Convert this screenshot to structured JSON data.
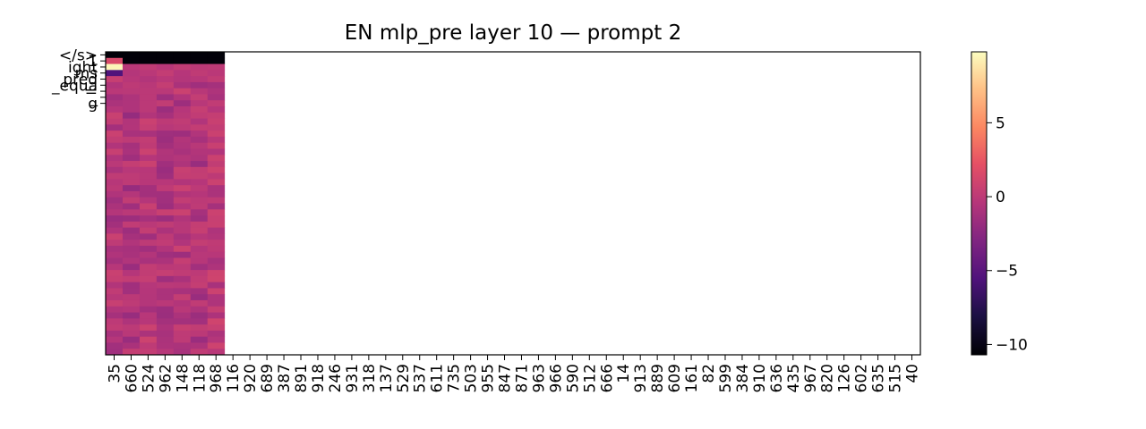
{
  "chart_data": {
    "type": "heatmap",
    "title": "EN mlp_pre layer 10 — prompt 2",
    "xlabel": "",
    "ylabel": "",
    "colormap": "magma",
    "x_tick_labels": [
      "35",
      "660",
      "524",
      "962",
      "148",
      "118",
      "968",
      "116",
      "920",
      "689",
      "387",
      "891",
      "918",
      "246",
      "931",
      "318",
      "137",
      "529",
      "537",
      "611",
      "735",
      "503",
      "955",
      "847",
      "871",
      "963",
      "966",
      "590",
      "512",
      "666",
      "14",
      "913",
      "889",
      "609",
      "161",
      "82",
      "599",
      "384",
      "910",
      "636",
      "435",
      "967",
      "820",
      "126",
      "602",
      "635",
      "515",
      "40"
    ],
    "y_tick_labels": [
      "</s>",
      "1",
      "ight",
      "ms",
      "pred",
      "_equa",
      "=",
      "_",
      "g"
    ],
    "filled_columns": 7,
    "num_rows": 50,
    "column_means": [
      -0.5,
      -0.8,
      -0.3,
      -0.6,
      -0.4,
      -0.7,
      -0.2
    ],
    "row_values_first": [
      [
        -10.5,
        -10.5,
        -10.5,
        -10.5,
        -10.5,
        -10.5,
        -10.5
      ]
    ],
    "row_values_head": [
      [
        1.5,
        -10.5,
        -10.5,
        -10.5,
        -10.5,
        -10.5,
        -10.5
      ],
      [
        9.5,
        -0.2,
        0.1,
        -0.3,
        0.2,
        -0.1,
        0.0
      ],
      [
        -5.5,
        -0.5,
        -0.2,
        0.3,
        -0.4,
        0.1,
        -0.2
      ],
      [
        0.5,
        -0.3,
        -0.6,
        -0.2,
        -0.5,
        -0.3,
        0.2
      ]
    ],
    "colorbar": {
      "min": -10.7,
      "max": 9.8,
      "ticks": [
        -10,
        -5,
        0,
        5
      ],
      "tick_labels": [
        "−10",
        "−5",
        "0",
        "5"
      ]
    }
  }
}
